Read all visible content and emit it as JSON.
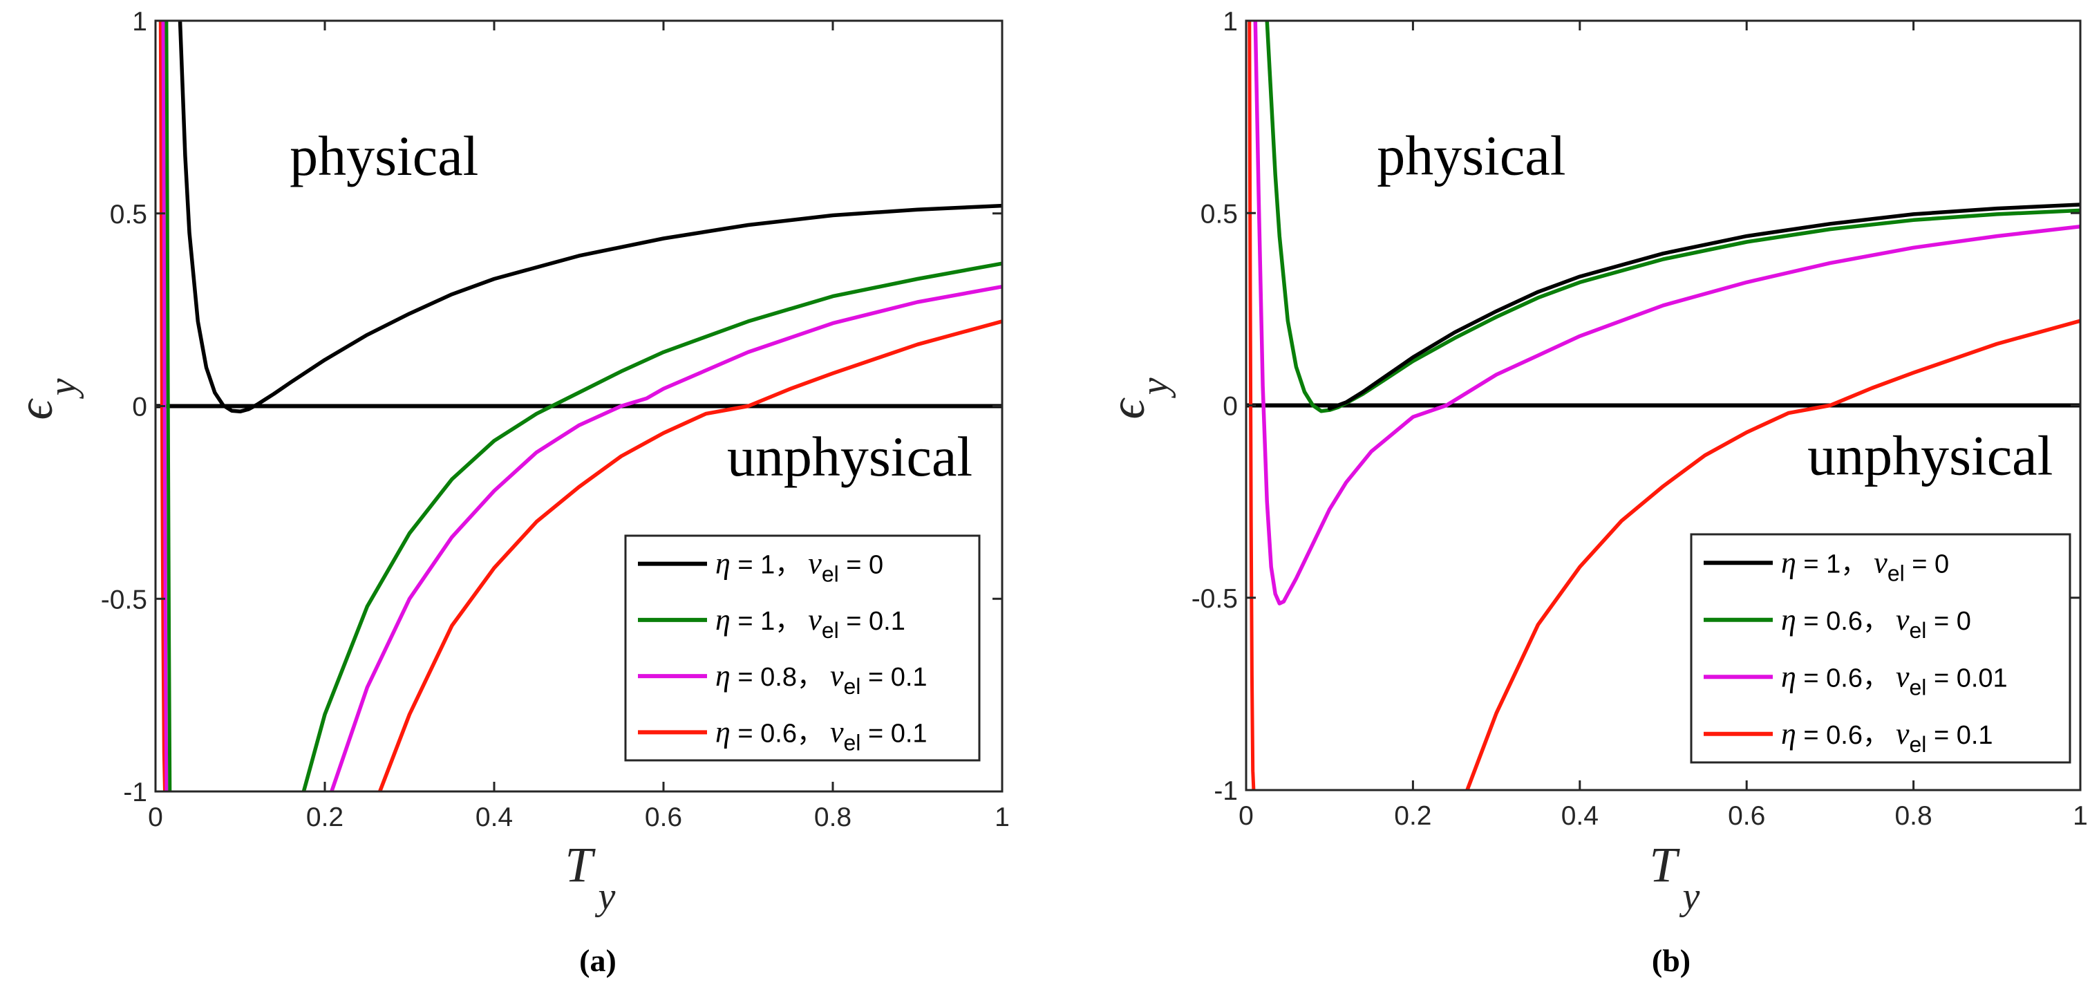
{
  "chart_data": [
    {
      "type": "line",
      "panel": "a",
      "caption": "(a)",
      "xlabel": "T",
      "xlabel_sub": "y",
      "ylabel": "ϵ",
      "ylabel_sub": "y",
      "xlim": [
        0,
        1
      ],
      "ylim": [
        -1,
        1
      ],
      "xticks": [
        "0",
        "0.2",
        "0.4",
        "0.6",
        "0.8",
        "1"
      ],
      "yticks": [
        "-1",
        "-0.5",
        "0",
        "0.5",
        "1"
      ],
      "xtick_values": [
        0,
        0.2,
        0.4,
        0.6,
        0.8,
        1
      ],
      "ytick_values": [
        -1,
        -0.5,
        0,
        0.5,
        1
      ],
      "annotations": [
        {
          "text": "physical",
          "x": 0.27,
          "y": 0.6
        },
        {
          "text": "unphysical",
          "x": 0.82,
          "y": -0.18
        }
      ],
      "legend_position": "bottom-right",
      "reference_line": {
        "y": 0,
        "color": "#000000"
      },
      "series": [
        {
          "name": "η = 1， ν_el = 0",
          "eta": "1",
          "nu": "0",
          "color": "#000000",
          "x": [
            0.029,
            0.03,
            0.035,
            0.04,
            0.05,
            0.06,
            0.07,
            0.08,
            0.09,
            0.1,
            0.11,
            0.12,
            0.14,
            0.16,
            0.2,
            0.25,
            0.3,
            0.35,
            0.4,
            0.5,
            0.6,
            0.7,
            0.8,
            0.9,
            1.0
          ],
          "y": [
            1.0,
            0.94,
            0.65,
            0.45,
            0.22,
            0.1,
            0.035,
            0.002,
            -0.012,
            -0.014,
            -0.008,
            0.004,
            0.032,
            0.062,
            0.12,
            0.185,
            0.24,
            0.29,
            0.33,
            0.39,
            0.435,
            0.47,
            0.495,
            0.51,
            0.52
          ]
        },
        {
          "name": "η = 1， ν_el = 0.1",
          "eta": "1",
          "nu": "0.1",
          "color": "#0a7f0a",
          "x": [
            0.175,
            0.2,
            0.25,
            0.3,
            0.35,
            0.4,
            0.45,
            0.5,
            0.55,
            0.6,
            0.7,
            0.8,
            0.9,
            1.0
          ],
          "y": [
            -1.0,
            -0.8,
            -0.52,
            -0.33,
            -0.19,
            -0.09,
            -0.02,
            0.035,
            0.09,
            0.14,
            0.22,
            0.285,
            0.33,
            0.37
          ]
        },
        {
          "name": "η = 0.8， ν_el = 0.1",
          "eta": "0.8",
          "nu": "0.1",
          "color": "#e010e0",
          "x": [
            0.208,
            0.25,
            0.3,
            0.35,
            0.4,
            0.45,
            0.5,
            0.55,
            0.58,
            0.6,
            0.7,
            0.8,
            0.9,
            1.0
          ],
          "y": [
            -1.0,
            -0.73,
            -0.5,
            -0.34,
            -0.22,
            -0.12,
            -0.05,
            0.0,
            0.02,
            0.045,
            0.14,
            0.215,
            0.27,
            0.31
          ]
        },
        {
          "name": "η = 0.6， ν_el = 0.1",
          "eta": "0.6",
          "nu": "0.1",
          "color": "#ff1a0a",
          "x": [
            0.265,
            0.3,
            0.35,
            0.4,
            0.45,
            0.5,
            0.55,
            0.6,
            0.65,
            0.7,
            0.75,
            0.8,
            0.9,
            1.0
          ],
          "y": [
            -1.0,
            -0.8,
            -0.57,
            -0.42,
            -0.3,
            -0.21,
            -0.13,
            -0.07,
            -0.02,
            0.0,
            0.045,
            0.085,
            0.16,
            0.22
          ]
        }
      ],
      "near_zero_spikes": [
        {
          "color": "#ff1a0a",
          "x": [
            0.006,
            0.007,
            0.008,
            0.009,
            0.01,
            0.011
          ],
          "y": [
            1.0,
            0.4,
            -0.2,
            -0.6,
            -0.9,
            -1.0
          ]
        },
        {
          "color": "#e010e0",
          "x": [
            0.009,
            0.01,
            0.011,
            0.012,
            0.013
          ],
          "y": [
            1.0,
            0.5,
            -0.2,
            -0.7,
            -1.0
          ]
        },
        {
          "color": "#0a7f0a",
          "x": [
            0.013,
            0.014,
            0.015,
            0.016,
            0.017
          ],
          "y": [
            1.0,
            0.5,
            -0.1,
            -0.6,
            -1.0
          ]
        }
      ]
    },
    {
      "type": "line",
      "panel": "b",
      "caption": "(b)",
      "xlabel": "T",
      "xlabel_sub": "y",
      "ylabel": "ϵ",
      "ylabel_sub": "y",
      "xlim": [
        0,
        1
      ],
      "ylim": [
        -1,
        1
      ],
      "xticks": [
        "0",
        "0.2",
        "0.4",
        "0.6",
        "0.8",
        "1"
      ],
      "yticks": [
        "-1",
        "-0.5",
        "0",
        "0.5",
        "1"
      ],
      "xtick_values": [
        0,
        0.2,
        0.4,
        0.6,
        0.8,
        1
      ],
      "ytick_values": [
        -1,
        -0.5,
        0,
        0.5,
        1
      ],
      "annotations": [
        {
          "text": "physical",
          "x": 0.27,
          "y": 0.6
        },
        {
          "text": "unphysical",
          "x": 0.82,
          "y": -0.18
        }
      ],
      "legend_position": "bottom-right",
      "reference_line": {
        "y": 0,
        "color": "#000000"
      },
      "series": [
        {
          "name": "η = 1， ν_el = 0",
          "eta": "1",
          "nu": "0",
          "color": "#000000",
          "x": [
            0.1,
            0.12,
            0.14,
            0.16,
            0.2,
            0.25,
            0.3,
            0.35,
            0.4,
            0.5,
            0.6,
            0.7,
            0.8,
            0.9,
            1.0
          ],
          "y": [
            -0.008,
            0.008,
            0.035,
            0.065,
            0.125,
            0.19,
            0.245,
            0.295,
            0.335,
            0.395,
            0.44,
            0.472,
            0.497,
            0.512,
            0.522
          ]
        },
        {
          "name": "η = 0.6， ν_el = 0",
          "eta": "0.6",
          "nu": "0",
          "color": "#0a7f0a",
          "x": [
            0.025,
            0.03,
            0.035,
            0.04,
            0.05,
            0.06,
            0.07,
            0.08,
            0.09,
            0.1,
            0.11,
            0.12,
            0.14,
            0.16,
            0.2,
            0.25,
            0.3,
            0.35,
            0.4,
            0.5,
            0.6,
            0.7,
            0.8,
            0.9,
            1.0
          ],
          "y": [
            1.0,
            0.8,
            0.6,
            0.44,
            0.22,
            0.1,
            0.035,
            0.0,
            -0.015,
            -0.012,
            -0.005,
            0.006,
            0.03,
            0.058,
            0.115,
            0.175,
            0.23,
            0.28,
            0.32,
            0.38,
            0.425,
            0.458,
            0.482,
            0.497,
            0.507
          ]
        },
        {
          "name": "η = 0.6， ν_el = 0.01",
          "eta": "0.6",
          "nu": "0.01",
          "color": "#e010e0",
          "x": [
            0.011,
            0.015,
            0.02,
            0.025,
            0.03,
            0.035,
            0.04,
            0.045,
            0.05,
            0.06,
            0.08,
            0.1,
            0.12,
            0.15,
            0.2,
            0.24,
            0.3,
            0.35,
            0.4,
            0.5,
            0.6,
            0.7,
            0.8,
            0.9,
            1.0
          ],
          "y": [
            1.0,
            0.55,
            0.05,
            -0.25,
            -0.42,
            -0.49,
            -0.515,
            -0.51,
            -0.49,
            -0.45,
            -0.36,
            -0.27,
            -0.2,
            -0.12,
            -0.03,
            0.0,
            0.08,
            0.13,
            0.18,
            0.26,
            0.32,
            0.37,
            0.41,
            0.44,
            0.465
          ]
        },
        {
          "name": "η = 0.6， ν_el = 0.1",
          "eta": "0.6",
          "nu": "0.1",
          "color": "#ff1a0a",
          "x": [
            0.265,
            0.3,
            0.35,
            0.4,
            0.45,
            0.5,
            0.55,
            0.6,
            0.65,
            0.7,
            0.75,
            0.8,
            0.9,
            1.0
          ],
          "y": [
            -1.0,
            -0.8,
            -0.57,
            -0.42,
            -0.3,
            -0.21,
            -0.13,
            -0.07,
            -0.02,
            0.0,
            0.045,
            0.085,
            0.16,
            0.22
          ]
        }
      ],
      "near_zero_spikes": [
        {
          "color": "#ff1a0a",
          "x": [
            0.004,
            0.005,
            0.006,
            0.007,
            0.008,
            0.009
          ],
          "y": [
            1.0,
            0.3,
            -0.3,
            -0.7,
            -0.95,
            -1.0
          ]
        }
      ]
    }
  ]
}
